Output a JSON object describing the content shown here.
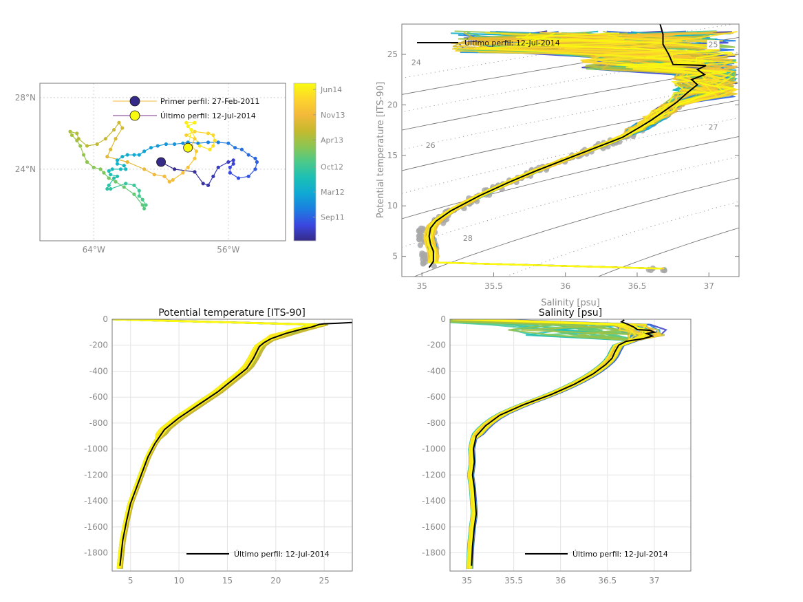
{
  "colors": {
    "axis": "#7a7a7a",
    "grid": "#e3e3e3",
    "last_profile": "#000000",
    "climatology_points": "#a8a8a8",
    "parula": [
      "#352a87",
      "#3b47e0",
      "#1c7ee0",
      "#0fa8d4",
      "#1cbfb5",
      "#4ac98a",
      "#8cc552",
      "#c6b92e",
      "#f3b93a",
      "#fdd52c",
      "#f9fb0e"
    ]
  },
  "chart_data": [
    {
      "id": "map",
      "type": "scatter",
      "title": "",
      "xlabel": "",
      "ylabel": "",
      "xlim": [
        -67.2,
        -52.6
      ],
      "ylim": [
        20.0,
        28.8
      ],
      "xticks": [
        {
          "value": -64,
          "label": "64°W"
        },
        {
          "value": -56,
          "label": "56°W"
        }
      ],
      "yticks": [
        {
          "value": 24,
          "label": "24°N"
        },
        {
          "value": 28,
          "label": "28°N"
        }
      ],
      "grid": "dotted",
      "legend": {
        "placement": "top-right",
        "entries": [
          {
            "label": "Primer perfil: 27-Feb-2011",
            "marker_color": "#352a87",
            "line_color": "#f3b93a"
          },
          {
            "label": "Último perfil: 12-Jul-2014",
            "marker_color": "#f9fb0e",
            "line_color": "#7b2d8e"
          }
        ]
      },
      "first_profile": {
        "lon": -60.0,
        "lat": 24.4
      },
      "last_profile": {
        "lon": -58.4,
        "lat": 25.2
      },
      "track": [
        [
          -60.0,
          24.4
        ],
        [
          -59.2,
          24.0
        ],
        [
          -58.0,
          23.85
        ],
        [
          -57.5,
          23.2
        ],
        [
          -57.2,
          23.1
        ],
        [
          -56.9,
          23.6
        ],
        [
          -56.6,
          24.1
        ],
        [
          -56.0,
          24.4
        ],
        [
          -55.7,
          24.5
        ],
        [
          -55.7,
          24.3
        ],
        [
          -55.9,
          24.1
        ],
        [
          -55.9,
          23.8
        ],
        [
          -55.4,
          23.5
        ],
        [
          -54.8,
          23.6
        ],
        [
          -54.4,
          24.0
        ],
        [
          -54.3,
          24.4
        ],
        [
          -54.4,
          24.6
        ],
        [
          -54.8,
          24.8
        ],
        [
          -55.2,
          25.1
        ],
        [
          -55.6,
          25.2
        ],
        [
          -56.0,
          25.45
        ],
        [
          -56.6,
          25.5
        ],
        [
          -57.2,
          25.5
        ],
        [
          -57.8,
          25.45
        ],
        [
          -58.4,
          25.5
        ],
        [
          -58.7,
          25.45
        ],
        [
          -59.2,
          25.4
        ],
        [
          -59.7,
          25.4
        ],
        [
          -60.2,
          25.3
        ],
        [
          -60.6,
          25.2
        ],
        [
          -61.0,
          25.0
        ],
        [
          -61.3,
          24.8
        ],
        [
          -61.6,
          24.8
        ],
        [
          -62.0,
          24.8
        ],
        [
          -62.3,
          24.7
        ],
        [
          -62.6,
          24.5
        ],
        [
          -62.6,
          24.3
        ],
        [
          -62.2,
          24.2
        ],
        [
          -62.1,
          24.0
        ],
        [
          -62.4,
          24.0
        ],
        [
          -62.9,
          24.0
        ],
        [
          -63.1,
          23.9
        ],
        [
          -63.0,
          23.7
        ],
        [
          -62.6,
          23.6
        ],
        [
          -62.8,
          23.5
        ],
        [
          -63.1,
          23.1
        ],
        [
          -63.2,
          22.9
        ],
        [
          -63.0,
          22.9
        ],
        [
          -62.1,
          23.2
        ],
        [
          -61.6,
          23.1
        ],
        [
          -61.3,
          22.8
        ],
        [
          -61.3,
          22.5
        ],
        [
          -61.1,
          22.3
        ],
        [
          -60.9,
          22.0
        ],
        [
          -61.0,
          21.8
        ],
        [
          -61.1,
          22.0
        ],
        [
          -61.6,
          22.6
        ],
        [
          -62.2,
          23.0
        ],
        [
          -62.7,
          23.3
        ],
        [
          -63.1,
          23.5
        ],
        [
          -63.4,
          23.8
        ],
        [
          -63.6,
          24.0
        ],
        [
          -64.0,
          24.1
        ],
        [
          -64.4,
          24.4
        ],
        [
          -64.6,
          24.8
        ],
        [
          -64.8,
          25.3
        ],
        [
          -65.0,
          25.6
        ],
        [
          -65.3,
          25.9
        ],
        [
          -65.4,
          26.1
        ],
        [
          -65.0,
          26.0
        ],
        [
          -64.9,
          25.7
        ],
        [
          -64.4,
          25.3
        ],
        [
          -63.8,
          25.4
        ],
        [
          -63.3,
          25.7
        ],
        [
          -62.8,
          26.2
        ],
        [
          -62.5,
          26.6
        ],
        [
          -62.3,
          26.3
        ],
        [
          -62.7,
          25.7
        ],
        [
          -63.0,
          25.1
        ],
        [
          -63.2,
          24.7
        ],
        [
          -62.0,
          24.4
        ],
        [
          -61.0,
          24.0
        ],
        [
          -60.4,
          23.7
        ],
        [
          -59.8,
          23.6
        ],
        [
          -59.5,
          23.3
        ],
        [
          -59.3,
          23.4
        ],
        [
          -58.7,
          23.8
        ],
        [
          -58.4,
          24.1
        ],
        [
          -58.0,
          24.6
        ],
        [
          -57.9,
          25.0
        ],
        [
          -58.2,
          25.3
        ],
        [
          -58.0,
          25.7
        ],
        [
          -58.5,
          25.9
        ],
        [
          -58.0,
          26.1
        ],
        [
          -57.2,
          26.0
        ],
        [
          -56.9,
          25.9
        ],
        [
          -56.8,
          25.6
        ],
        [
          -56.9,
          25.3
        ],
        [
          -57.1,
          25.1
        ],
        [
          -57.7,
          25.3
        ],
        [
          -58.5,
          26.6
        ],
        [
          -58.0,
          26.6
        ],
        [
          -58.4,
          26.4
        ],
        [
          -58.2,
          26.2
        ],
        [
          -58.4,
          25.2
        ]
      ],
      "colorbar": {
        "labels": [
          "Jun14",
          "Nov13",
          "Apr13",
          "Oct12",
          "Mar12",
          "Sep11"
        ],
        "positions": [
          0.96,
          0.8,
          0.64,
          0.47,
          0.31,
          0.15
        ]
      }
    },
    {
      "id": "ts",
      "type": "line",
      "title": "",
      "xlabel": "Salinity [psu]",
      "ylabel": "Potential temperature [ITS-90]",
      "xlim": [
        34.86,
        37.21
      ],
      "ylim": [
        3.0,
        28.0
      ],
      "xticks": [
        35,
        35.5,
        36,
        36.5,
        37
      ],
      "yticks": [
        5,
        10,
        15,
        20,
        25
      ],
      "isopycnal_labels": [
        "24",
        "25",
        "26",
        "27",
        "28"
      ],
      "legend": {
        "placement": "top-left",
        "entries": [
          {
            "label": "Último perfil: 12-Jul-2014"
          }
        ]
      },
      "last_profile": {
        "S": [
          35.05,
          35.08,
          35.08,
          35.06,
          35.05,
          35.06,
          35.1,
          35.2,
          35.4,
          35.6,
          35.8,
          36.0,
          36.2,
          36.4,
          36.52,
          36.6,
          36.7,
          36.78,
          36.85,
          36.92,
          36.88,
          36.97,
          36.92,
          36.98,
          36.75,
          36.72,
          36.68,
          36.68,
          36.66
        ],
        "T": [
          3.9,
          4.5,
          5.5,
          6.2,
          7.0,
          7.8,
          8.5,
          9.5,
          11.0,
          12.3,
          13.5,
          14.6,
          15.7,
          16.8,
          17.8,
          18.5,
          19.5,
          20.3,
          21.2,
          22.0,
          22.5,
          23.0,
          23.5,
          23.9,
          24.0,
          25.0,
          26.0,
          27.0,
          28.0
        ]
      }
    },
    {
      "id": "temp_profile",
      "type": "line",
      "title": "Potential temperature [ITS-90]",
      "xlabel": "",
      "ylabel": "",
      "xlim": [
        3.1,
        27.9
      ],
      "ylim": [
        -1940,
        0
      ],
      "xticks": [
        5,
        10,
        15,
        20,
        25
      ],
      "yticks": [
        0,
        -200,
        -400,
        -600,
        -800,
        -1000,
        -1200,
        -1400,
        -1600,
        -1800
      ],
      "grid": true,
      "legend": {
        "placement": "bottom-right",
        "entries": [
          {
            "label": "Último perfil: 12-Jul-2014"
          }
        ]
      },
      "last_profile": {
        "x": [
          27.9,
          26.5,
          25.0,
          24.5,
          23.7,
          22.5,
          21.0,
          19.5,
          18.8,
          18.3,
          17.7,
          17.0,
          15.5,
          14.0,
          12.0,
          10.0,
          8.5,
          7.5,
          6.8,
          6.2,
          5.6,
          5.0,
          4.6,
          4.2,
          3.9
        ],
        "depth": [
          -25,
          -30,
          -35,
          -40,
          -60,
          -80,
          -110,
          -150,
          -180,
          -210,
          -300,
          -380,
          -470,
          -560,
          -660,
          -760,
          -850,
          -960,
          -1060,
          -1180,
          -1300,
          -1420,
          -1550,
          -1700,
          -1900
        ]
      }
    },
    {
      "id": "sal_profile",
      "type": "line",
      "title": "Salinity [psu]",
      "xlabel": "",
      "ylabel": "",
      "xlim": [
        34.82,
        37.39
      ],
      "ylim": [
        -1940,
        0
      ],
      "xticks": [
        35,
        35.5,
        36,
        36.5,
        37
      ],
      "yticks": [
        0,
        -200,
        -400,
        -600,
        -800,
        -1000,
        -1200,
        -1400,
        -1600,
        -1800
      ],
      "grid": true,
      "legend": {
        "placement": "bottom-right",
        "entries": [
          {
            "label": "Último perfil: 12-Jul-2014"
          }
        ]
      },
      "last_profile": {
        "x": [
          36.68,
          36.65,
          36.72,
          36.78,
          36.82,
          36.95,
          37.0,
          36.92,
          36.98,
          36.88,
          36.7,
          36.62,
          36.58,
          36.55,
          36.48,
          36.35,
          36.15,
          35.9,
          35.6,
          35.35,
          35.2,
          35.1,
          35.07,
          35.08,
          35.06,
          35.08,
          35.1,
          35.08,
          35.06,
          35.05
        ],
        "depth": [
          -5,
          -20,
          -40,
          -60,
          -80,
          -85,
          -100,
          -110,
          -130,
          -150,
          -170,
          -200,
          -250,
          -300,
          -350,
          -420,
          -500,
          -580,
          -660,
          -740,
          -820,
          -900,
          -1000,
          -1100,
          -1200,
          -1300,
          -1500,
          -1600,
          -1750,
          -1900
        ]
      }
    }
  ]
}
